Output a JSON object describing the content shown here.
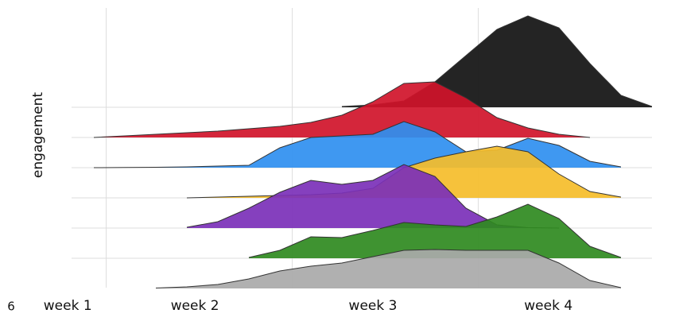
{
  "chart_data": {
    "type": "ridgeline",
    "y_label": "engagement",
    "corner_text": "6",
    "x": [
      0,
      0.5,
      1,
      1.5,
      2,
      2.5,
      3,
      3.5,
      4,
      4.5,
      5,
      5.5,
      6,
      6.5,
      7,
      7.5,
      8,
      8.5,
      9,
      9.5,
      10
    ],
    "xlim": [
      0,
      10
    ],
    "xticks": [
      {
        "value": 0.58,
        "label": "week 1"
      },
      {
        "value": 2.63,
        "label": "week 2"
      },
      {
        "value": 5.5,
        "label": "week 3"
      },
      {
        "value": 8.33,
        "label": "week 4"
      }
    ],
    "xgrid": [
      1.2,
      4.2,
      7.2
    ],
    "grid": true,
    "series": [
      {
        "color": "#111111",
        "values": [
          null,
          null,
          null,
          null,
          null,
          null,
          null,
          null,
          null,
          null,
          0.1,
          0.3,
          0.8,
          3.2,
          6.5,
          9.8,
          11.5,
          10,
          5.5,
          1.5,
          0.1
        ]
      },
      {
        "color": "#d0142a",
        "values": [
          null,
          null,
          0,
          0.2,
          0.4,
          0.6,
          0.8,
          1.1,
          1.4,
          1.9,
          2.8,
          4.5,
          6.8,
          7,
          5,
          2.5,
          1.2,
          0.4,
          0,
          null,
          null
        ]
      },
      {
        "color": "#2f8ff0",
        "values": [
          null,
          null,
          0,
          0.02,
          0.05,
          0.1,
          0.2,
          0.3,
          2.5,
          3.8,
          4,
          4.2,
          5.8,
          4.5,
          2,
          2.2,
          3.7,
          2.8,
          0.8,
          0.1,
          null
        ]
      },
      {
        "color": "#f5bd2a",
        "values": [
          null,
          null,
          null,
          null,
          null,
          0,
          0.1,
          0.2,
          0.3,
          0.4,
          0.6,
          1.2,
          3.8,
          5,
          5.8,
          6.5,
          5.8,
          3,
          0.8,
          0.1,
          null
        ]
      },
      {
        "color": "#7b30b8",
        "values": [
          null,
          null,
          null,
          null,
          null,
          0.1,
          0.8,
          2.5,
          4.5,
          6,
          5.5,
          6,
          8,
          6.5,
          2.5,
          0.4,
          0.05,
          0,
          null,
          null,
          null
        ]
      },
      {
        "color": "#2f8a1f",
        "values": [
          null,
          null,
          null,
          null,
          null,
          null,
          null,
          0.1,
          1,
          2.7,
          2.6,
          3.5,
          4.5,
          4.2,
          4,
          5.2,
          6.8,
          5,
          1.5,
          0.1,
          null
        ]
      },
      {
        "color": "#a9a9a9",
        "values": [
          null,
          null,
          null,
          null,
          0.05,
          0.2,
          0.5,
          1.2,
          2.2,
          2.8,
          3.2,
          4,
          4.8,
          4.9,
          4.8,
          4.8,
          4.8,
          3.2,
          1,
          0.1,
          null
        ]
      }
    ]
  }
}
